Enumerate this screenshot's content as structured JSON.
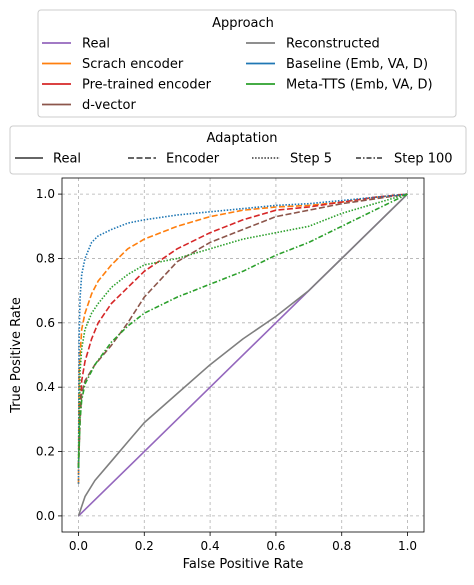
{
  "chart_data": {
    "type": "line",
    "xlabel": "False Positive Rate",
    "ylabel": "True Positive Rate",
    "xlim": [
      -0.05,
      1.05
    ],
    "ylim": [
      -0.05,
      1.05
    ],
    "xticks": [
      0.0,
      0.2,
      0.4,
      0.6,
      0.8,
      1.0
    ],
    "yticks": [
      0.0,
      0.2,
      0.4,
      0.6,
      0.8,
      1.0
    ],
    "xtick_labels": [
      "0.0",
      "0.2",
      "0.4",
      "0.6",
      "0.8",
      "1.0"
    ],
    "ytick_labels": [
      "0.0",
      "0.2",
      "0.4",
      "0.6",
      "0.8",
      "1.0"
    ],
    "grid": true,
    "legends": [
      {
        "title": "Approach",
        "placement": "top",
        "entries": [
          {
            "label": "Real",
            "color": "#9467bd",
            "dash": "solid"
          },
          {
            "label": "Scrach encoder",
            "color": "#ff7f0e",
            "dash": "solid"
          },
          {
            "label": "Pre-trained encoder",
            "color": "#d62728",
            "dash": "solid"
          },
          {
            "label": "d-vector",
            "color": "#8c564b",
            "dash": "solid"
          },
          {
            "label": "Reconstructed",
            "color": "#7f7f7f",
            "dash": "solid"
          },
          {
            "label": "Baseline (Emb, VA, D)",
            "color": "#1f77b4",
            "dash": "solid"
          },
          {
            "label": "Meta-TTS (Emb, VA, D)",
            "color": "#2ca02c",
            "dash": "solid"
          }
        ]
      },
      {
        "title": "Adaptation",
        "placement": "below approach legend",
        "entries": [
          {
            "label": "Real",
            "color": "#333333",
            "dash": "solid"
          },
          {
            "label": "Encoder",
            "color": "#333333",
            "dash": "dashed"
          },
          {
            "label": "Step 5",
            "color": "#333333",
            "dash": "dotted"
          },
          {
            "label": "Step 100",
            "color": "#333333",
            "dash": "dashdot"
          }
        ]
      }
    ],
    "series": [
      {
        "name": "Real",
        "color": "#9467bd",
        "dash": "solid",
        "x": [
          0,
          1
        ],
        "y": [
          0,
          1
        ]
      },
      {
        "name": "Reconstructed",
        "color": "#7f7f7f",
        "dash": "solid",
        "x": [
          0,
          0.02,
          0.05,
          0.1,
          0.15,
          0.2,
          0.3,
          0.4,
          0.5,
          0.6,
          0.7,
          0.8,
          0.9,
          1.0
        ],
        "y": [
          0,
          0.06,
          0.11,
          0.17,
          0.23,
          0.29,
          0.38,
          0.47,
          0.55,
          0.62,
          0.7,
          0.8,
          0.9,
          1.0
        ]
      },
      {
        "name": "Scrach encoder",
        "color": "#ff7f0e",
        "dash": "dashed",
        "x": [
          0,
          0.002,
          0.01,
          0.02,
          0.04,
          0.06,
          0.1,
          0.15,
          0.2,
          0.3,
          0.4,
          0.5,
          0.6,
          0.7,
          0.8,
          0.9,
          1.0
        ],
        "y": [
          0.1,
          0.45,
          0.58,
          0.63,
          0.69,
          0.73,
          0.78,
          0.83,
          0.86,
          0.9,
          0.93,
          0.95,
          0.96,
          0.965,
          0.975,
          0.99,
          1.0
        ]
      },
      {
        "name": "Pre-trained encoder",
        "color": "#d62728",
        "dash": "dashed",
        "x": [
          0,
          0.005,
          0.01,
          0.02,
          0.04,
          0.06,
          0.1,
          0.15,
          0.2,
          0.3,
          0.4,
          0.5,
          0.6,
          0.7,
          0.8,
          0.9,
          1.0
        ],
        "y": [
          0.15,
          0.33,
          0.42,
          0.48,
          0.55,
          0.6,
          0.66,
          0.71,
          0.76,
          0.83,
          0.88,
          0.92,
          0.95,
          0.96,
          0.975,
          0.99,
          1.0
        ]
      },
      {
        "name": "d-vector",
        "color": "#8c564b",
        "dash": "dashed",
        "x": [
          0,
          0.005,
          0.01,
          0.02,
          0.05,
          0.1,
          0.15,
          0.2,
          0.3,
          0.4,
          0.5,
          0.6,
          0.7,
          0.8,
          0.9,
          1.0
        ],
        "y": [
          0.15,
          0.3,
          0.38,
          0.42,
          0.47,
          0.53,
          0.6,
          0.68,
          0.79,
          0.85,
          0.89,
          0.93,
          0.95,
          0.97,
          0.985,
          1.0
        ]
      },
      {
        "name": "Baseline (Emb, VA, D)",
        "color": "#1f77b4",
        "dash": "dotted",
        "x": [
          0,
          0.002,
          0.005,
          0.01,
          0.02,
          0.04,
          0.06,
          0.1,
          0.15,
          0.2,
          0.3,
          0.4,
          0.5,
          0.6,
          0.7,
          0.8,
          0.9,
          1.0
        ],
        "y": [
          0.1,
          0.55,
          0.68,
          0.75,
          0.8,
          0.85,
          0.87,
          0.89,
          0.91,
          0.92,
          0.935,
          0.945,
          0.955,
          0.965,
          0.97,
          0.98,
          0.99,
          1.0
        ]
      },
      {
        "name": "Meta-TTS (Emb, VA, D)",
        "color": "#2ca02c",
        "dash": "dotted",
        "x": [
          0,
          0.005,
          0.01,
          0.02,
          0.04,
          0.06,
          0.1,
          0.15,
          0.2,
          0.3,
          0.4,
          0.5,
          0.6,
          0.7,
          0.8,
          0.9,
          1.0
        ],
        "y": [
          0.15,
          0.45,
          0.52,
          0.58,
          0.63,
          0.66,
          0.71,
          0.75,
          0.78,
          0.8,
          0.83,
          0.86,
          0.88,
          0.9,
          0.94,
          0.97,
          1.0
        ]
      },
      {
        "name": "Meta-TTS (Emb, VA, D)",
        "color": "#2ca02c",
        "dash": "dashdot",
        "x": [
          0,
          0.005,
          0.01,
          0.02,
          0.05,
          0.1,
          0.15,
          0.2,
          0.3,
          0.4,
          0.5,
          0.6,
          0.7,
          0.8,
          0.9,
          1.0
        ],
        "y": [
          0.15,
          0.3,
          0.36,
          0.41,
          0.47,
          0.54,
          0.59,
          0.63,
          0.68,
          0.72,
          0.76,
          0.81,
          0.85,
          0.9,
          0.95,
          1.0
        ]
      }
    ]
  }
}
